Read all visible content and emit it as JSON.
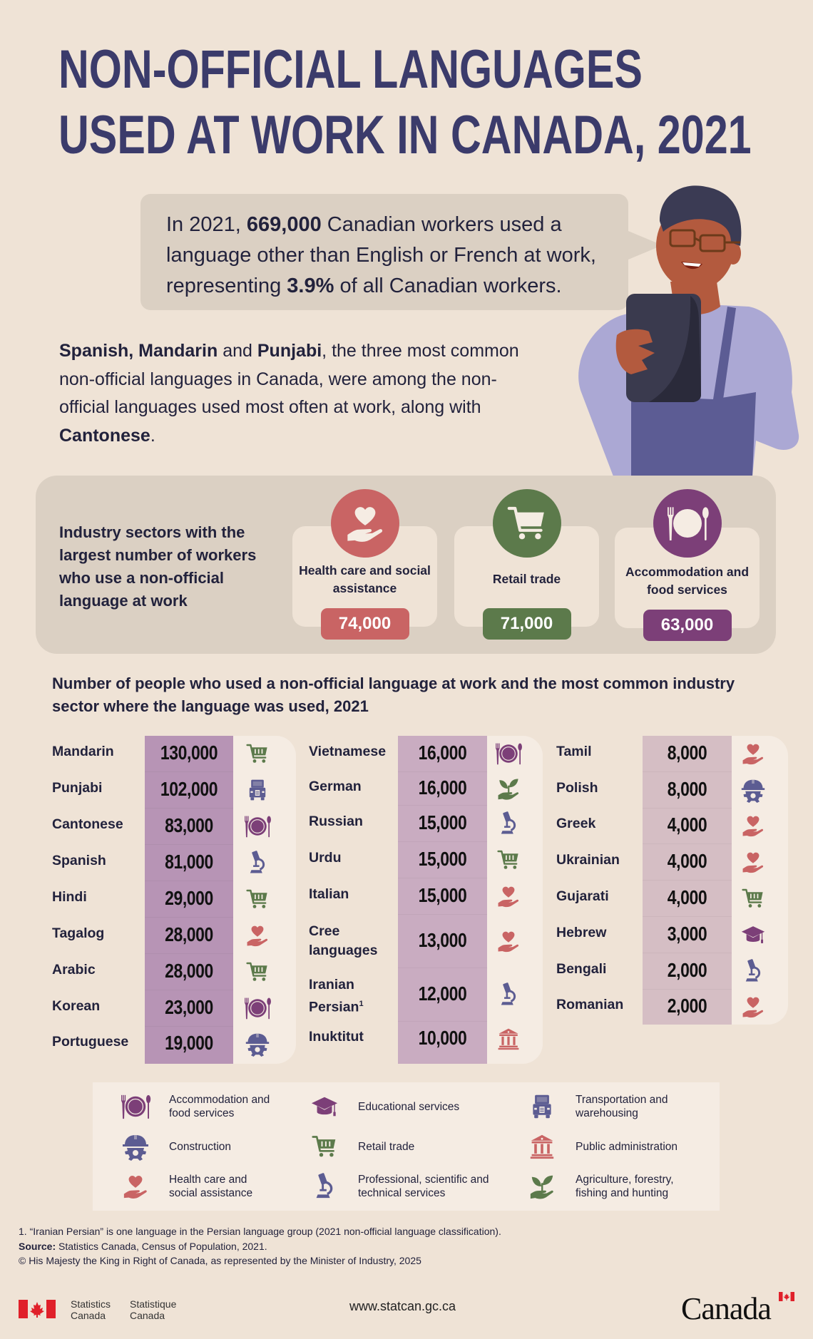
{
  "header": {
    "title_line1": "NON-OFFICIAL LANGUAGES",
    "title_line2": "USED AT WORK IN CANADA, 2021"
  },
  "speech_bubble": {
    "part1": "In 2021, ",
    "workers_count": "669,000",
    "part2": " Canadian workers used a language other than English or French at work, representing ",
    "percent": "3.9%",
    "part3": " of all Canadian workers."
  },
  "intro": {
    "lang1": "Spanish, Mandarin",
    "and1": " and ",
    "lang2": "Punjabi",
    "mid": ", the three most common non-official languages in Canada, were among the non-official languages used most often at work, along with ",
    "lang3": "Cantonese",
    "end": "."
  },
  "top_sectors": {
    "label": "Industry sectors with the largest number of workers who use a non-official language at work",
    "items": [
      {
        "name": "Health care and social assistance",
        "value": "74,000",
        "icon": "heart-hand-icon",
        "color": "#c96464"
      },
      {
        "name": "Retail trade",
        "value": "71,000",
        "icon": "shopping-cart-icon",
        "color": "#5c7a4b"
      },
      {
        "name": "Accommodation and food services",
        "value": "63,000",
        "icon": "plate-cutlery-icon",
        "color": "#7c3f78"
      }
    ]
  },
  "table": {
    "title": "Number of people who used a non-official language at work and the most common industry sector where the language was used, 2021",
    "columns": [
      [
        {
          "language": "Mandarin",
          "count": "130,000",
          "sector": "retail"
        },
        {
          "language": "Punjabi",
          "count": "102,000",
          "sector": "transport"
        },
        {
          "language": "Cantonese",
          "count": "83,000",
          "sector": "food"
        },
        {
          "language": "Spanish",
          "count": "81,000",
          "sector": "science"
        },
        {
          "language": "Hindi",
          "count": "29,000",
          "sector": "retail"
        },
        {
          "language": "Tagalog",
          "count": "28,000",
          "sector": "health"
        },
        {
          "language": "Arabic",
          "count": "28,000",
          "sector": "retail"
        },
        {
          "language": "Korean",
          "count": "23,000",
          "sector": "food"
        },
        {
          "language": "Portuguese",
          "count": "19,000",
          "sector": "construction"
        }
      ],
      [
        {
          "language": "Vietnamese",
          "count": "16,000",
          "sector": "food"
        },
        {
          "language": "German",
          "count": "16,000",
          "sector": "agriculture"
        },
        {
          "language": "Russian",
          "count": "15,000",
          "sector": "science"
        },
        {
          "language": "Urdu",
          "count": "15,000",
          "sector": "retail"
        },
        {
          "language": "Italian",
          "count": "15,000",
          "sector": "health"
        },
        {
          "language": "Cree languages",
          "count": "13,000",
          "sector": "health"
        },
        {
          "language": "Iranian Persian",
          "footnote": "1",
          "count": "12,000",
          "sector": "science"
        },
        {
          "language": "Inuktitut",
          "count": "10,000",
          "sector": "public"
        }
      ],
      [
        {
          "language": "Tamil",
          "count": "8,000",
          "sector": "health"
        },
        {
          "language": "Polish",
          "count": "8,000",
          "sector": "construction"
        },
        {
          "language": "Greek",
          "count": "4,000",
          "sector": "health"
        },
        {
          "language": "Ukrainian",
          "count": "4,000",
          "sector": "health"
        },
        {
          "language": "Gujarati",
          "count": "4,000",
          "sector": "retail"
        },
        {
          "language": "Hebrew",
          "count": "3,000",
          "sector": "education"
        },
        {
          "language": "Bengali",
          "count": "2,000",
          "sector": "science"
        },
        {
          "language": "Romanian",
          "count": "2,000",
          "sector": "health"
        }
      ]
    ]
  },
  "legend": {
    "items": [
      {
        "key": "food",
        "label": "Accommodation and food services"
      },
      {
        "key": "education",
        "label": "Educational services"
      },
      {
        "key": "transport",
        "label": "Transportation and warehousing"
      },
      {
        "key": "construction",
        "label": "Construction"
      },
      {
        "key": "retail",
        "label": "Retail trade"
      },
      {
        "key": "public",
        "label": "Public administration"
      },
      {
        "key": "health",
        "label": "Health care and social assistance"
      },
      {
        "key": "science",
        "label": "Professional, scientific and technical services"
      },
      {
        "key": "agriculture",
        "label": "Agriculture, forestry, fishing and hunting"
      }
    ]
  },
  "colors": {
    "background": "#efe3d6",
    "title": "#3b3b6b",
    "health": "#c96464",
    "retail": "#5c7a4b",
    "food": "#7c3f78",
    "construction": "#5c5c92",
    "col1_value_bg": "#b794b5",
    "col2_value_bg": "#c9acc1",
    "col3_value_bg": "#d5bec4"
  },
  "footnotes": {
    "note1": "1.  “Iranian Persian” is one language in the Persian language group (2021 non-official language classification).",
    "source_label": "Source:",
    "source_text": " Statistics Canada, Census of Population, 2021.",
    "copyright": "© His Majesty the King in Right of Canada, as represented by the Minister of Industry, 2025"
  },
  "footer": {
    "org_en_1": "Statistics",
    "org_en_2": "Canada",
    "org_fr_1": "Statistique",
    "org_fr_2": "Canada",
    "url": "www.statcan.gc.ca",
    "wordmark": "Canada"
  }
}
